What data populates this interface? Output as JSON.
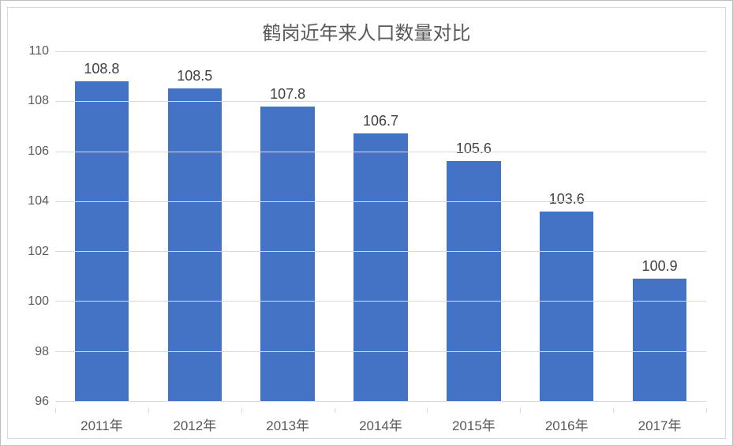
{
  "chart": {
    "type": "bar",
    "title": "鹤岗近年来人口数量对比",
    "title_fontsize": 24,
    "title_color": "#595959",
    "categories": [
      "2011年",
      "2012年",
      "2013年",
      "2014年",
      "2015年",
      "2016年",
      "2017年"
    ],
    "values": [
      108.8,
      108.5,
      107.8,
      106.7,
      105.6,
      103.6,
      100.9
    ],
    "value_labels": [
      "108.8",
      "108.5",
      "107.8",
      "106.7",
      "105.6",
      "103.6",
      "100.9"
    ],
    "bar_color": "#4472c4",
    "ylim": [
      96,
      110
    ],
    "ytick_step": 2,
    "yticks": [
      96,
      98,
      100,
      102,
      104,
      106,
      108,
      110
    ],
    "grid_color": "#d9d9d9",
    "border_color": "#bfbfbf",
    "background_color": "#ffffff",
    "axis_label_fontsize": 16,
    "axis_label_color": "#595959",
    "data_label_fontsize": 18,
    "data_label_color": "#404040",
    "bar_width": 0.58
  }
}
